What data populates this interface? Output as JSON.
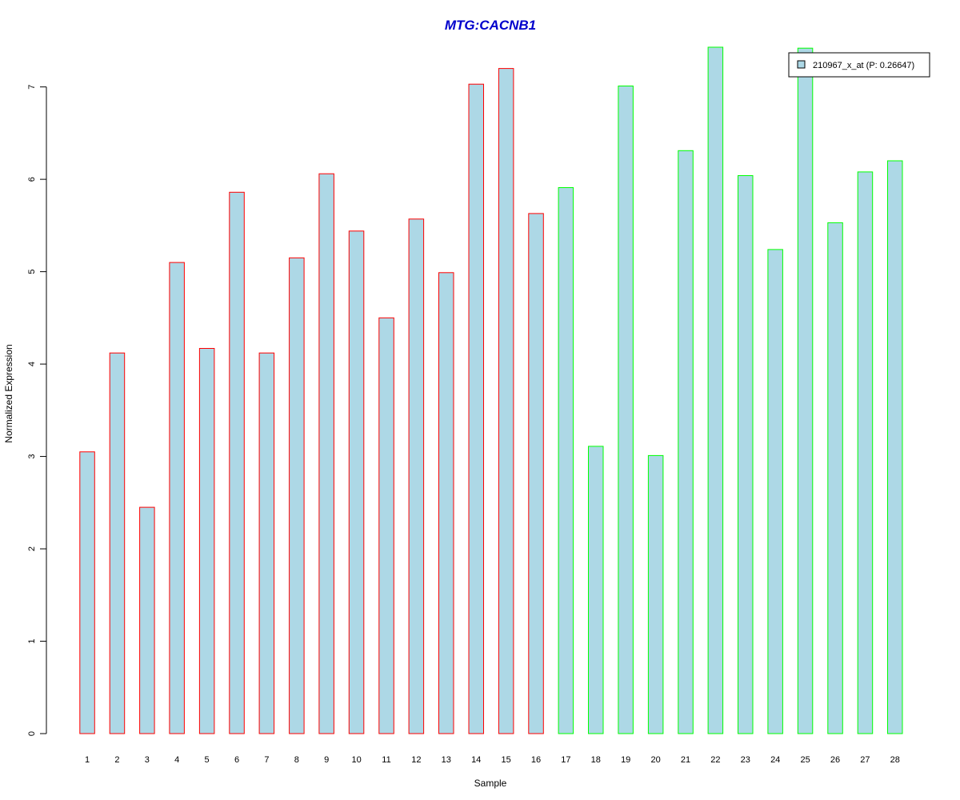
{
  "chart_data": {
    "type": "bar",
    "title": "MTG:CACNB1",
    "xlabel": "Sample",
    "ylabel": "Normalized Expression",
    "categories": [
      "1",
      "2",
      "3",
      "4",
      "5",
      "6",
      "7",
      "8",
      "9",
      "10",
      "11",
      "12",
      "13",
      "14",
      "15",
      "16",
      "17",
      "18",
      "19",
      "20",
      "21",
      "22",
      "23",
      "24",
      "25",
      "26",
      "27",
      "28"
    ],
    "series": [
      {
        "name": "210967_x_at (P: 0.26647)",
        "values": [
          3.05,
          4.12,
          2.45,
          5.1,
          4.17,
          5.86,
          4.12,
          5.15,
          6.06,
          5.44,
          4.5,
          5.57,
          4.99,
          7.03,
          7.2,
          5.63,
          5.91,
          3.11,
          7.01,
          3.01,
          6.31,
          7.43,
          6.04,
          5.24,
          7.42,
          5.53,
          6.08,
          6.2
        ]
      }
    ],
    "group_of_sample": [
      1,
      1,
      1,
      1,
      1,
      1,
      1,
      1,
      1,
      1,
      1,
      1,
      1,
      1,
      1,
      1,
      2,
      2,
      2,
      2,
      2,
      2,
      2,
      2,
      2,
      2,
      2,
      2
    ],
    "yticks": [
      0,
      1,
      2,
      3,
      4,
      5,
      6,
      7
    ],
    "ylim": [
      0,
      7.43
    ],
    "grid": false,
    "legend_position": "top-right",
    "colors": {
      "bar_fill": "#add8e6",
      "group1_border": "#ff0000",
      "group2_border": "#00ff00",
      "title": "#0000cc"
    }
  }
}
